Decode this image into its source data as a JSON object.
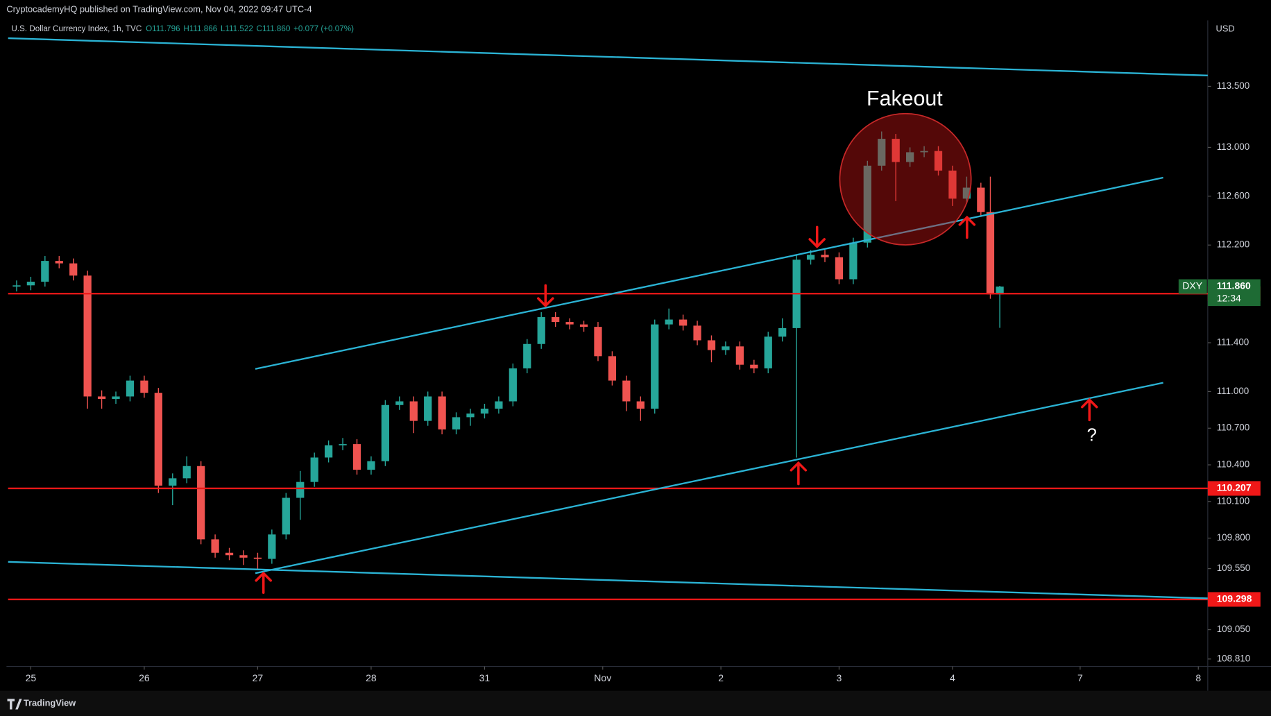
{
  "header": {
    "published": "CryptocademyHQ published on TradingView.com, Nov 04, 2022 09:47 UTC-4",
    "symbol": "U.S. Dollar Currency Index, 1h, TVC",
    "open": "O111.796",
    "high": "H111.866",
    "low": "L111.522",
    "close": "C111.860",
    "change": "+0.077 (+0.07%)",
    "currency": "USD",
    "footer": "TradingView"
  },
  "chart_data": {
    "type": "candlestick",
    "up_color": "#26a69a",
    "down_color": "#ef5350",
    "x": [
      -3,
      0,
      3,
      6,
      9,
      12,
      15,
      18,
      21,
      24,
      27,
      30,
      33,
      36,
      39,
      42,
      45,
      48,
      51,
      54,
      57,
      60,
      63,
      66,
      69,
      72,
      75,
      78,
      81,
      84,
      87,
      90,
      93,
      96,
      99,
      102,
      105,
      108,
      111,
      114,
      117,
      120,
      123,
      126,
      129,
      132,
      135,
      138,
      141,
      144,
      147,
      150,
      153,
      156,
      159,
      162,
      165,
      168,
      171,
      174,
      177,
      180,
      183,
      186,
      189,
      192,
      195,
      198,
      201,
      203,
      205
    ],
    "open": [
      111.86,
      111.87,
      111.9,
      112.07,
      112.05,
      111.95,
      110.96,
      110.94,
      110.96,
      111.09,
      110.99,
      110.23,
      110.29,
      110.39,
      109.79,
      109.68,
      109.66,
      109.64,
      109.63,
      109.83,
      110.13,
      110.26,
      110.46,
      110.56,
      110.57,
      110.36,
      110.43,
      110.89,
      110.92,
      110.76,
      110.96,
      110.69,
      110.79,
      110.82,
      110.86,
      110.92,
      111.19,
      111.39,
      111.61,
      111.57,
      111.55,
      111.53,
      111.29,
      111.09,
      110.92,
      110.86,
      111.55,
      111.59,
      111.54,
      111.42,
      111.34,
      111.37,
      111.22,
      111.19,
      111.45,
      111.52,
      112.08,
      112.12,
      112.1,
      111.92,
      112.22,
      112.85,
      113.07,
      112.88,
      112.96,
      112.97,
      112.81,
      112.58,
      112.67,
      112.47,
      111.796
    ],
    "high": [
      111.91,
      111.94,
      112.11,
      112.11,
      112.09,
      111.99,
      111.01,
      111.0,
      111.13,
      111.13,
      111.03,
      110.33,
      110.47,
      110.43,
      109.83,
      109.72,
      109.7,
      109.68,
      109.87,
      110.17,
      110.35,
      110.5,
      110.6,
      110.62,
      110.61,
      110.47,
      110.93,
      110.96,
      110.96,
      111.0,
      111.0,
      110.83,
      110.86,
      110.9,
      110.96,
      111.23,
      111.43,
      111.65,
      111.65,
      111.6,
      111.58,
      111.57,
      111.33,
      111.13,
      110.96,
      111.59,
      111.68,
      111.63,
      111.58,
      111.46,
      111.41,
      111.41,
      111.26,
      111.49,
      111.6,
      112.12,
      112.16,
      112.16,
      112.14,
      112.26,
      112.89,
      113.13,
      113.11,
      113.0,
      113.01,
      113.01,
      112.85,
      112.76,
      112.71,
      112.76,
      111.866
    ],
    "low": [
      111.82,
      111.83,
      111.86,
      112.01,
      111.91,
      110.86,
      110.86,
      110.9,
      110.92,
      110.95,
      110.17,
      110.07,
      110.25,
      109.75,
      109.64,
      109.62,
      109.58,
      109.55,
      109.59,
      109.79,
      109.95,
      110.22,
      110.42,
      110.52,
      110.32,
      110.32,
      110.39,
      110.85,
      110.66,
      110.72,
      110.65,
      110.65,
      110.72,
      110.78,
      110.82,
      110.88,
      111.15,
      111.35,
      111.53,
      111.51,
      111.49,
      111.25,
      111.05,
      110.84,
      110.76,
      110.82,
      111.51,
      111.5,
      111.38,
      111.24,
      111.3,
      111.18,
      111.15,
      111.15,
      111.41,
      110.46,
      112.04,
      112.06,
      111.88,
      111.88,
      112.18,
      112.81,
      112.56,
      112.84,
      112.92,
      112.77,
      112.52,
      112.54,
      112.43,
      111.76,
      111.522
    ],
    "close": [
      111.87,
      111.9,
      112.07,
      112.05,
      111.95,
      110.96,
      110.94,
      110.96,
      111.09,
      110.99,
      110.23,
      110.29,
      110.39,
      109.79,
      109.68,
      109.66,
      109.64,
      109.63,
      109.83,
      110.13,
      110.26,
      110.46,
      110.56,
      110.57,
      110.36,
      110.43,
      110.89,
      110.92,
      110.76,
      110.96,
      110.69,
      110.79,
      110.82,
      110.86,
      110.92,
      111.19,
      111.39,
      111.61,
      111.57,
      111.55,
      111.53,
      111.29,
      111.09,
      110.92,
      110.86,
      111.55,
      111.59,
      111.54,
      111.42,
      111.34,
      111.37,
      111.22,
      111.19,
      111.45,
      111.52,
      112.08,
      112.12,
      112.1,
      111.92,
      112.22,
      112.85,
      113.07,
      112.88,
      112.96,
      112.97,
      112.81,
      112.58,
      112.67,
      112.47,
      111.796,
      111.86
    ],
    "xlim": [
      -4.8,
      249
    ],
    "ylim": [
      108.55,
      114.02
    ],
    "xticks": [
      {
        "value": 0,
        "label": "25"
      },
      {
        "value": 24,
        "label": "26"
      },
      {
        "value": 48,
        "label": "27"
      },
      {
        "value": 72,
        "label": "28"
      },
      {
        "value": 96,
        "label": "31"
      },
      {
        "value": 121,
        "label": "Nov"
      },
      {
        "value": 146,
        "label": "2"
      },
      {
        "value": 171,
        "label": "3"
      },
      {
        "value": 195,
        "label": "4"
      },
      {
        "value": 222,
        "label": "7"
      },
      {
        "value": 247,
        "label": "8"
      }
    ],
    "yticks": [
      {
        "value": 113.5,
        "label": "113.500"
      },
      {
        "value": 113,
        "label": "113.000"
      },
      {
        "value": 112.6,
        "label": "112.600"
      },
      {
        "value": 112.2,
        "label": "112.200"
      },
      {
        "value": 111.4,
        "label": "111.400"
      },
      {
        "value": 111,
        "label": "111.000"
      },
      {
        "value": 110.7,
        "label": "110.700"
      },
      {
        "value": 110.4,
        "label": "110.400"
      },
      {
        "value": 110.1,
        "label": "110.100"
      },
      {
        "value": 109.8,
        "label": "109.800"
      },
      {
        "value": 109.55,
        "label": "109.550"
      },
      {
        "value": 109.05,
        "label": "109.050"
      },
      {
        "value": 108.81,
        "label": "108.810"
      }
    ],
    "grid": false,
    "levels": [
      {
        "value": 111.802,
        "color": "#f01818"
      },
      {
        "value": 110.207,
        "color": "#f01818"
      },
      {
        "value": 109.298,
        "color": "#f01818"
      }
    ],
    "last_price": {
      "value": 111.86,
      "label": "111.860",
      "ticker": "DXY",
      "countdown": "12:34",
      "color": "#1e6b34"
    },
    "annotations": {
      "fakeout": "Fakeout",
      "question": "?"
    }
  }
}
